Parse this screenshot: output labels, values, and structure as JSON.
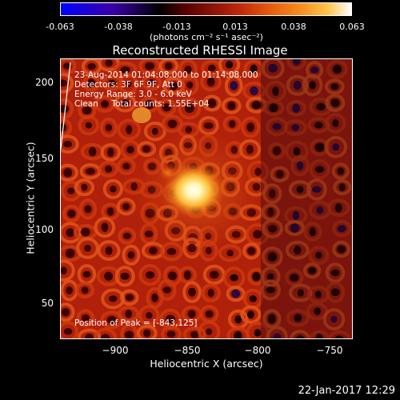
{
  "colorbar": {
    "ticks": [
      "-0.063",
      "-0.038",
      "-0.013",
      "0.013",
      "0.038",
      "0.063"
    ],
    "unit_label": "(photons cm⁻² s⁻¹ asec⁻²)"
  },
  "title": "Reconstructed RHESSI Image",
  "info": {
    "time": "23-Aug-2014 01:04:08.000 to 01:14:08.000",
    "detectors": "Detectors: 3F 6F 9F, Att 0",
    "energy": "Energy Range: 3.0 - 6.0 keV",
    "clean": "Clean     Total counts: 1.55E+04",
    "peak": "Position of Peak = [-843,125]"
  },
  "axes": {
    "xlabel": "Heliocentric X (arcsec)",
    "ylabel": "Heliocentric Y (arcsec)",
    "xticks": [
      "−900",
      "−850",
      "−800",
      "−750"
    ],
    "yticks": [
      "200",
      "150",
      "100",
      "50"
    ]
  },
  "footer_date": "22-Jan-2017 12:29",
  "colors": {
    "background": "#000000",
    "text": "#ffffff"
  }
}
